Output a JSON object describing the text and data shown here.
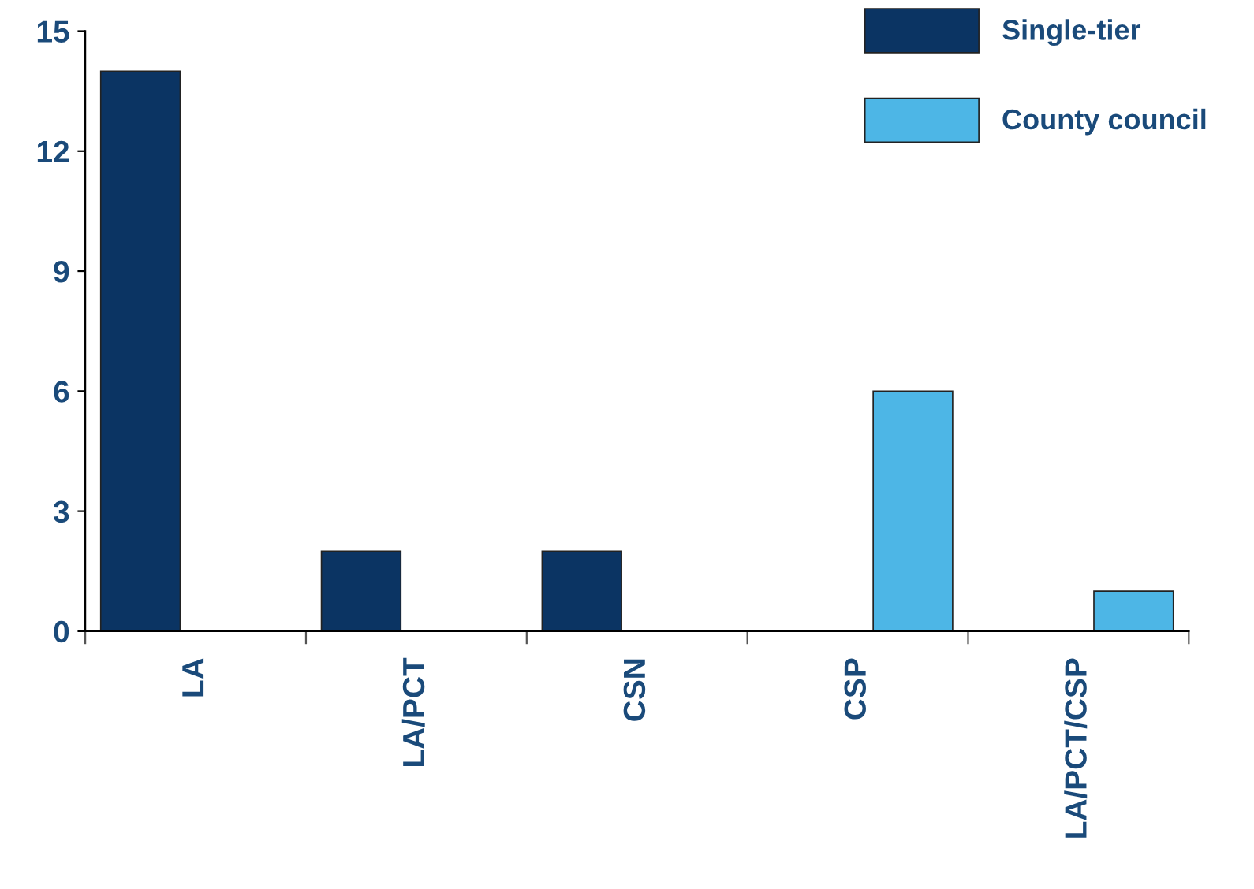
{
  "chart_data": {
    "type": "bar",
    "categories": [
      "LA",
      "LA/PCT",
      "CSN",
      "CSP",
      "LA/PCT/CSP"
    ],
    "series": [
      {
        "name": "Single-tier",
        "color": "#0b3463",
        "values": [
          14,
          2,
          2,
          null,
          null
        ]
      },
      {
        "name": "County council",
        "color": "#4db6e6",
        "values": [
          null,
          null,
          null,
          6,
          1
        ]
      }
    ],
    "ylim": [
      0,
      15
    ],
    "yticks": [
      0,
      3,
      6,
      9,
      12,
      15
    ],
    "grid": false,
    "legend": "top right"
  }
}
